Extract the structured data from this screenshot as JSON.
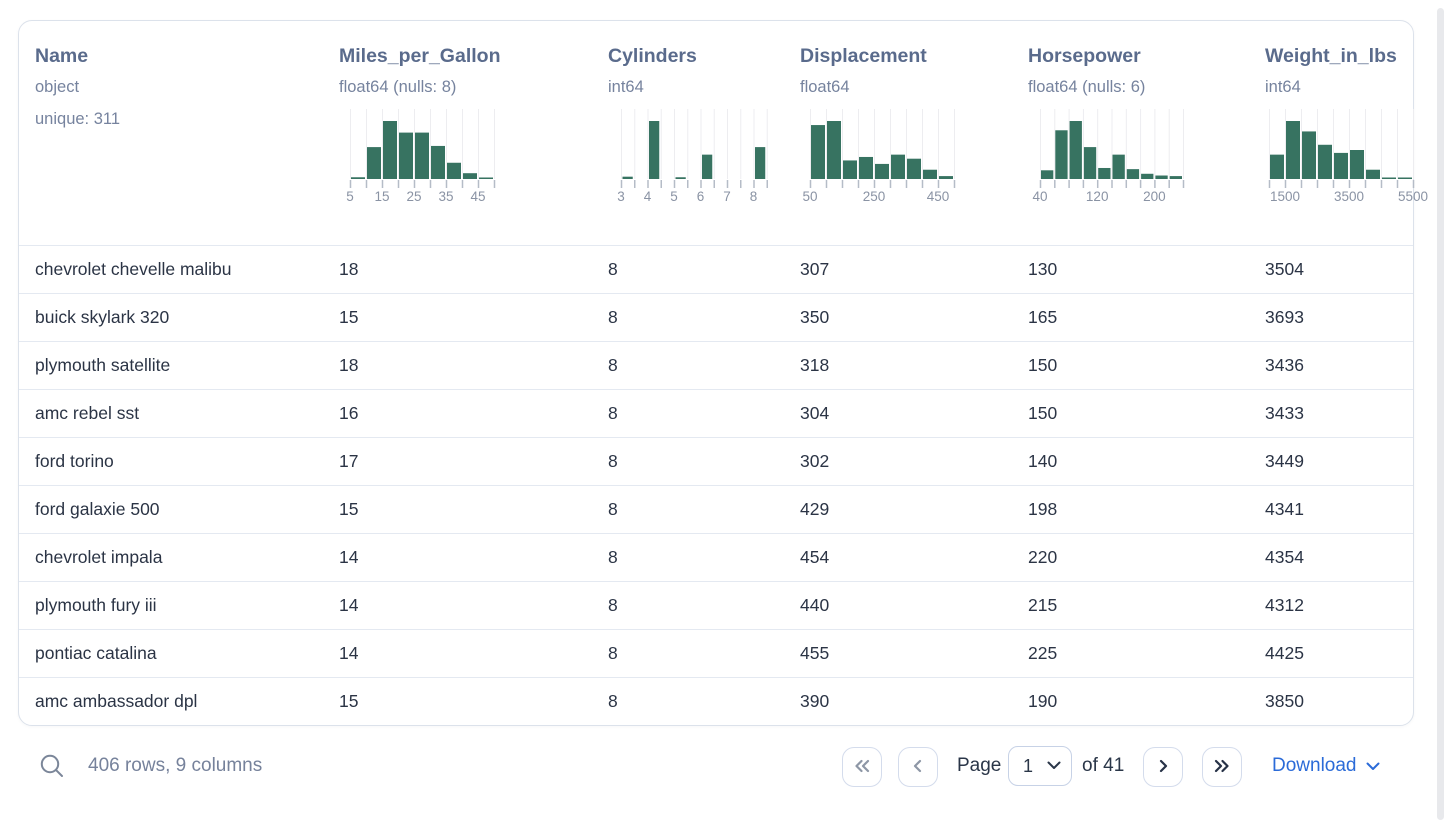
{
  "colors": {
    "accent_green": "#377361",
    "link_blue": "#2b6bd8",
    "header_text": "#5a6b8c",
    "muted_text": "#76829b",
    "row_text": "#2b3445",
    "grid_line": "#ededf0",
    "tick_mark": "#b5bcc7"
  },
  "icons": {
    "search": "magnifier",
    "first_page": "double-chevron-left",
    "prev_page": "chevron-left",
    "next_page": "chevron-right",
    "last_page": "double-chevron-right",
    "page_select": "chevron-down",
    "download": "chevron-down"
  },
  "table": {
    "columns": [
      {
        "name": "Name",
        "type": "object",
        "extra": "unique: 311"
      },
      {
        "name": "Miles_per_Gallon",
        "type": "float64 (nulls: 8)"
      },
      {
        "name": "Cylinders",
        "type": "int64"
      },
      {
        "name": "Displacement",
        "type": "float64"
      },
      {
        "name": "Horsepower",
        "type": "float64 (nulls: 6)"
      },
      {
        "name": "Weight_in_lbs",
        "type": "int64"
      }
    ],
    "rows": [
      [
        "chevrolet chevelle malibu",
        "18",
        "8",
        "307",
        "130",
        "3504"
      ],
      [
        "buick skylark 320",
        "15",
        "8",
        "350",
        "165",
        "3693"
      ],
      [
        "plymouth satellite",
        "18",
        "8",
        "318",
        "150",
        "3436"
      ],
      [
        "amc rebel sst",
        "16",
        "8",
        "304",
        "150",
        "3433"
      ],
      [
        "ford torino",
        "17",
        "8",
        "302",
        "140",
        "3449"
      ],
      [
        "ford galaxie 500",
        "15",
        "8",
        "429",
        "198",
        "4341"
      ],
      [
        "chevrolet impala",
        "14",
        "8",
        "454",
        "220",
        "4354"
      ],
      [
        "plymouth fury iii",
        "14",
        "8",
        "440",
        "215",
        "4312"
      ],
      [
        "pontiac catalina",
        "14",
        "8",
        "455",
        "225",
        "4425"
      ],
      [
        "amc ambassador dpl",
        "15",
        "8",
        "390",
        "190",
        "3850"
      ]
    ]
  },
  "chart_data": [
    {
      "column": "Miles_per_Gallon",
      "type": "histogram",
      "layout": "contiguous",
      "bin_start": 5,
      "bin_width": 5,
      "rel_heights": [
        0.03,
        0.55,
        1.0,
        0.8,
        0.8,
        0.57,
        0.28,
        0.1,
        0.02
      ],
      "tick_labels": [
        {
          "edge": 0,
          "text": "5"
        },
        {
          "edge": 2,
          "text": "15"
        },
        {
          "edge": 4,
          "text": "25"
        },
        {
          "edge": 6,
          "text": "35"
        },
        {
          "edge": 8,
          "text": "45"
        }
      ]
    },
    {
      "column": "Cylinders",
      "type": "histogram",
      "layout": "split",
      "bin_start": 3,
      "bin_width": 1,
      "rel_heights": [
        0.04,
        1.0,
        0.03,
        0.42,
        0,
        0.55
      ],
      "tick_labels": [
        {
          "edge": 0,
          "text": "3"
        },
        {
          "edge": 1,
          "text": "4"
        },
        {
          "edge": 2,
          "text": "5"
        },
        {
          "edge": 3,
          "text": "6"
        },
        {
          "edge": 4,
          "text": "7"
        },
        {
          "edge": 5,
          "text": "8"
        }
      ]
    },
    {
      "column": "Displacement",
      "type": "histogram",
      "layout": "contiguous",
      "bin_start": 50,
      "bin_width": 50,
      "rel_heights": [
        0.93,
        1.0,
        0.32,
        0.38,
        0.26,
        0.42,
        0.35,
        0.16,
        0.05
      ],
      "tick_labels": [
        {
          "edge": 0,
          "text": "50"
        },
        {
          "edge": 4,
          "text": "250"
        },
        {
          "edge": 8,
          "text": "450"
        }
      ]
    },
    {
      "column": "Horsepower",
      "type": "histogram",
      "layout": "contiguous",
      "bin_start": 40,
      "bin_width": 20,
      "rel_heights": [
        0.15,
        0.84,
        1.0,
        0.55,
        0.19,
        0.42,
        0.17,
        0.09,
        0.06,
        0.05
      ],
      "tick_labels": [
        {
          "edge": 0,
          "text": "40"
        },
        {
          "edge": 4,
          "text": "120"
        },
        {
          "edge": 8,
          "text": "200"
        }
      ]
    },
    {
      "column": "Weight_in_lbs",
      "type": "histogram",
      "layout": "contiguous",
      "bin_start": 1000,
      "bin_width": 500,
      "rel_heights": [
        0.42,
        1.0,
        0.82,
        0.59,
        0.45,
        0.5,
        0.16,
        0.02,
        0.01
      ],
      "tick_labels": [
        {
          "edge": 1,
          "text": "1500"
        },
        {
          "edge": 5,
          "text": "3500"
        },
        {
          "edge": 9,
          "text": "5500"
        }
      ]
    }
  ],
  "footer": {
    "status": "406 rows, 9 columns",
    "page_label": "Page",
    "page_value": "1",
    "of_label": "of 41",
    "download_label": "Download",
    "pagination": {
      "first_disabled": true,
      "prev_disabled": true,
      "next_disabled": false,
      "last_disabled": false
    }
  }
}
